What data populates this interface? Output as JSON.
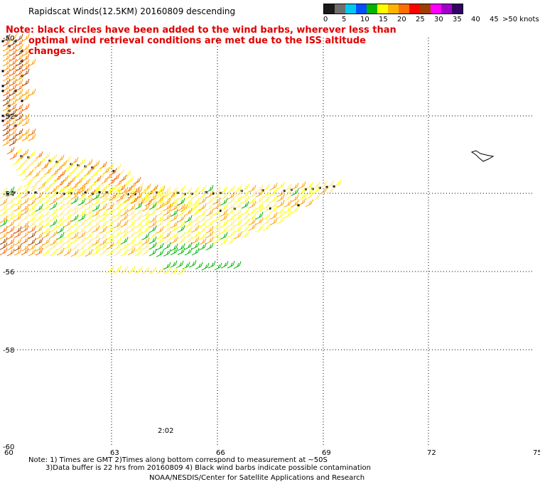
{
  "header": {
    "title": "Rapidscat Winds(12.5KM) 20160809 descending",
    "note_line1": "Note: black circles have been added to the wind barbs, wherever less than",
    "note_line2": "optimal wind retrieval conditions are met due to the ISS altitude changes."
  },
  "legend": {
    "unit": ">50 knots",
    "ticks": [
      "0",
      "5",
      "10",
      "15",
      "20",
      "25",
      "30",
      "35",
      "40",
      "45"
    ],
    "colors": [
      "#1a1a1a",
      "#6e6e6e",
      "#00c8f0",
      "#0050ff",
      "#00b400",
      "#ffff00",
      "#ffb400",
      "#ff6e00",
      "#ff0000",
      "#a03c00",
      "#ff00ff",
      "#a000c8",
      "#320064"
    ]
  },
  "axes": {
    "lon_labels": [
      "60",
      "63",
      "66",
      "69",
      "72",
      "75"
    ],
    "lat_labels": [
      "-50",
      "-52",
      "-54",
      "-56",
      "-58",
      "-60"
    ]
  },
  "time_label": "2:02",
  "footer": {
    "line1": "Note: 1) Times are GMT 2)Times along bottom correspond to measurement at ~50S",
    "line2": "3)Data buffer is 22 hrs from 20160809 4) Black wind barbs indicate possible contamination",
    "line3": "NOAA/NESDIS/Center for Satellite Applications and Research"
  },
  "colors": {
    "barb_yellow": "#ffff00",
    "barb_lightyellow": "#ffe97a",
    "barb_orange": "#ffa000",
    "barb_darkorange": "#ff6400",
    "barb_brown": "#a04600",
    "barb_green": "#00b400",
    "flag_circle": "#000000"
  }
}
